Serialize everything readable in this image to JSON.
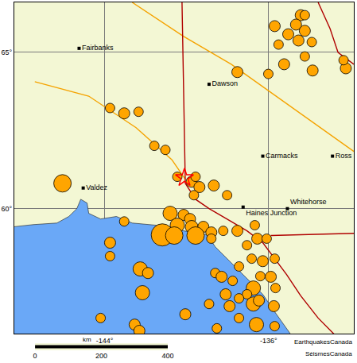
{
  "chart_data": {
    "type": "map",
    "xlim": [
      -148.4,
      -131.84
    ],
    "ylim": [
      56.0,
      66.6
    ],
    "xticks": [
      {
        "value": -144,
        "label": "-144°"
      },
      {
        "value": -136,
        "label": "-136°"
      }
    ],
    "yticks": [
      {
        "value": 60,
        "label": "60°"
      },
      {
        "value": 65,
        "label": "65°"
      }
    ],
    "grid": true,
    "land": {
      "color": "#f3f7d4"
    },
    "ocean": {
      "color": "#6aa8f7",
      "lon": [
        -148.44,
        -147.47,
        -146.32,
        -145.74,
        -145.35,
        -145.16,
        -144.85,
        -144.77,
        -144.19,
        -143.42,
        -142.65,
        -141.49,
        -140.14,
        -138.98,
        -138.6,
        -138.02,
        -137.44,
        -136.86,
        -136.28,
        -135.7,
        -134.93,
        -148.44
      ],
      "lat": [
        59.42,
        59.49,
        59.54,
        59.75,
        60.0,
        60.3,
        60.18,
        59.85,
        59.67,
        59.75,
        59.54,
        59.47,
        59.29,
        59.16,
        58.78,
        58.4,
        58.02,
        57.64,
        57.26,
        56.7,
        55.99,
        55.99
      ]
    },
    "lines": [
      {
        "color": "#f5a300",
        "lon": [
          -142.65,
          -140.14,
          -137.82,
          -135.12,
          -131.84
        ],
        "lat": [
          66.6,
          65.51,
          64.62,
          63.35,
          61.83
        ]
      },
      {
        "color": "#f5a300",
        "lon": [
          -147.4,
          -144.77,
          -142.46,
          -140.72,
          -140.06
        ],
        "lat": [
          64.06,
          63.6,
          62.59,
          61.57,
          60.94
        ]
      },
      {
        "color": "#b00000",
        "lon": [
          -140.22,
          -140.06,
          -139.56,
          -138.9,
          -137.82,
          -137.05,
          -136.28,
          -135.7,
          -135.12,
          -134.43,
          -133.58,
          -132.81
        ],
        "lat": [
          66.6,
          60.81,
          60.3,
          60.0,
          59.59,
          59.29,
          58.91,
          58.4,
          57.89,
          57.21,
          56.5,
          55.99
        ]
      },
      {
        "color": "#b00000",
        "lon": [
          -135.89,
          -131.84
        ],
        "lat": [
          59.14,
          59.21
        ]
      },
      {
        "color": "#b00000",
        "lon": [
          -133.58,
          -133.0,
          -132.61,
          -131.84
        ],
        "lat": [
          66.6,
          65.76,
          65.0,
          64.62
        ]
      }
    ],
    "earthquakes": {
      "color": "#ffa500",
      "lon": [
        -134.43,
        -134.66,
        -134.23,
        -135.04,
        -134.54,
        -135.7,
        -133.89,
        -135.51,
        -134.23,
        -134.23,
        -135.24,
        -133.85,
        -132.23,
        -132.34,
        -137.52,
        -136.01,
        -143.73,
        -143.04,
        -142.34,
        -141.57,
        -141.03,
        -140.45,
        -139.75,
        -139.56,
        -139.37,
        -139.64,
        -138.67,
        -138.02,
        -146.05,
        -143.04,
        -140.8,
        -140.14,
        -139.83,
        -140.45,
        -139.75,
        -139.18,
        -141.18,
        -140.6,
        -139.56,
        -138.79,
        -138.21,
        -137.52,
        -136.67,
        -136.55,
        -136.09,
        -137.05,
        -143.73,
        -143.73,
        -142.26,
        -141.88,
        -138.6,
        -138.29,
        -137.44,
        -136.82,
        -136.28,
        -135.7,
        -136.4,
        -135.89,
        -136.74,
        -137.05,
        -137.75,
        -138.09,
        -137.44,
        -137.9,
        -136.74,
        -136.47,
        -135.66,
        -135.74,
        -142.15,
        -138.9,
        -140.06,
        -142.53,
        -142.3,
        -144.19,
        -137.44,
        -136.59,
        -135.7,
        -138.52,
        -138.79
      ],
      "lat": [
        66.19,
        65.89,
        65.69,
        65.58,
        65.38,
        65.84,
        65.33,
        65.25,
        66.19,
        64.87,
        64.62,
        64.42,
        64.49,
        64.75,
        64.37,
        64.31,
        63.22,
        63.05,
        63.1,
        62.01,
        61.88,
        61.02,
        60.86,
        61.02,
        60.69,
        60.43,
        60.74,
        60.43,
        60.81,
        59.59,
        59.85,
        59.8,
        59.67,
        59.47,
        59.42,
        59.42,
        59.16,
        59.14,
        59.14,
        59.24,
        59.29,
        59.29,
        59.47,
        59.04,
        59.04,
        58.83,
        58.91,
        58.48,
        58.07,
        57.94,
        57.94,
        57.82,
        58.15,
        58.4,
        58.32,
        58.4,
        57.84,
        57.82,
        57.46,
        57.26,
        57.69,
        57.26,
        57.13,
        56.88,
        56.95,
        57.06,
        57.46,
        56.88,
        57.31,
        56.95,
        56.62,
        56.29,
        56.09,
        56.5,
        56.5,
        56.29,
        56.24,
        56.17,
        59.04
      ],
      "sizes": [
        3.5,
        3.5,
        3.5,
        3.5,
        3.5,
        3.5,
        3,
        3,
        3,
        3,
        3.5,
        3.5,
        3.5,
        3,
        3.5,
        3,
        3,
        3.5,
        3,
        3,
        3,
        3,
        3.5,
        3,
        3.5,
        3,
        3.5,
        3,
        5.5,
        3,
        4.5,
        3.5,
        3.5,
        4.5,
        4,
        3.5,
        7,
        5.5,
        5.5,
        3.5,
        3,
        3.5,
        3,
        3.5,
        3,
        3,
        3.5,
        3,
        4.5,
        3.5,
        3,
        3.5,
        3,
        3,
        3.5,
        3,
        3,
        3.5,
        4.5,
        3,
        3,
        3.5,
        3,
        3.5,
        4.5,
        3.5,
        3,
        3.5,
        4.5,
        3,
        3.5,
        3.5,
        3.5,
        3,
        3,
        4.5,
        3,
        3,
        3
      ]
    },
    "epicenter": {
      "color": "#ff0000",
      "marker": "star-open",
      "lon": [
        -140.1
      ],
      "lat": [
        60.99
      ]
    },
    "places": [
      {
        "label": "Fairbanks",
        "lon": -145.24,
        "lat": 65.13
      },
      {
        "label": "Dawson",
        "lon": -138.9,
        "lat": 63.98
      },
      {
        "label": "Carmacks",
        "lon": -136.28,
        "lat": 61.68
      },
      {
        "label": "Ross",
        "lon": -132.88,
        "lat": 61.68
      },
      {
        "label": "Valdez",
        "lon": -145.04,
        "lat": 60.66
      },
      {
        "label": "Haines Junction",
        "lon": -137.24,
        "lat": 60.05
      },
      {
        "label": "Whitehorse",
        "lon": -135.08,
        "lat": 60.0
      }
    ],
    "scale_bar": {
      "label": "km",
      "xlim": [
        0,
        400
      ],
      "xticks": [
        0,
        200,
        400
      ]
    },
    "credits": [
      "EarthquakesCanada",
      "SéismesCanada"
    ]
  }
}
